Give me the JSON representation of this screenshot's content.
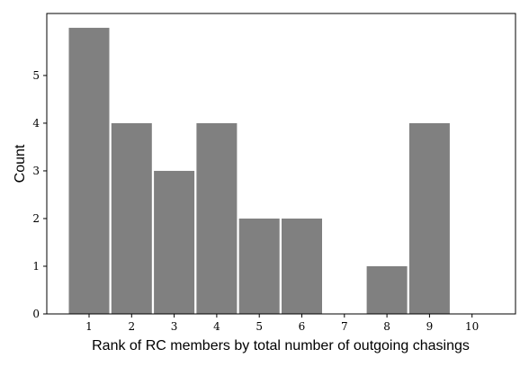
{
  "chart_data": {
    "type": "bar",
    "title": "",
    "xlabel": "Rank of RC members by total number of outgoing chasings",
    "ylabel": "Count",
    "categories": [
      "1",
      "2",
      "3",
      "4",
      "5",
      "6",
      "7",
      "8",
      "9",
      "10"
    ],
    "values": [
      6,
      4,
      3,
      4,
      2,
      2,
      0,
      1,
      4,
      0
    ],
    "ylim": [
      0,
      6.3
    ],
    "yticks": [
      0,
      1,
      2,
      3,
      4,
      5
    ],
    "grid": false,
    "bar_color": "#808080"
  }
}
